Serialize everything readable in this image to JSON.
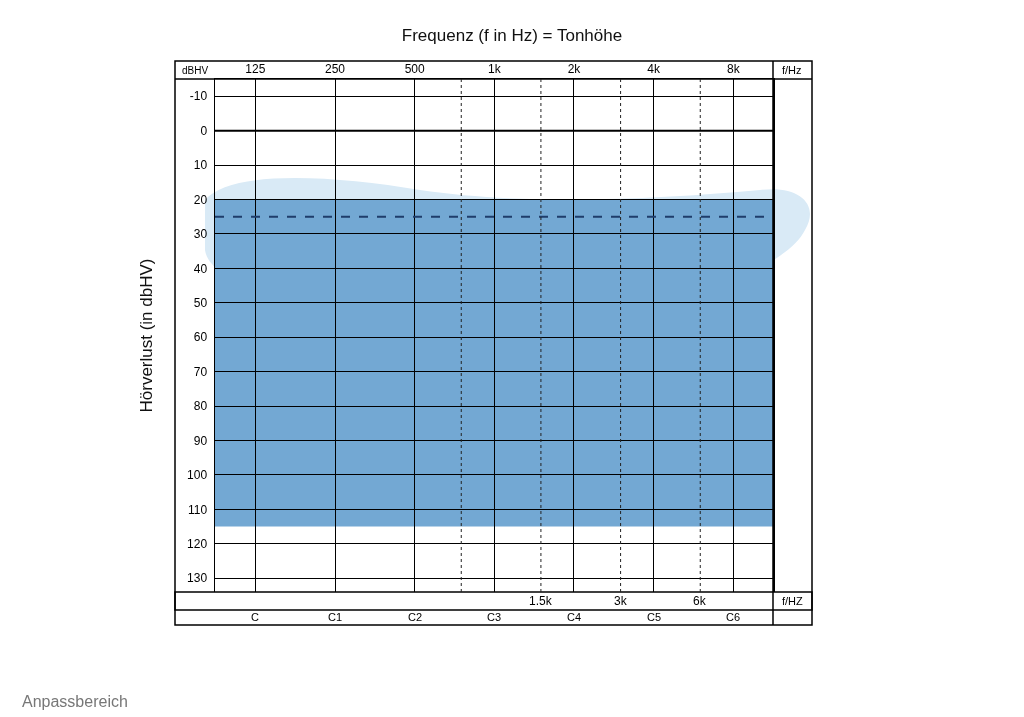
{
  "chart_data": {
    "type": "line",
    "title": "Frequenz (f in Hz) = Tonhöhe",
    "ylabel": "Hörverlust (in dbHV)",
    "log": "x",
    "xlim": [
      88,
      11300
    ],
    "xticks": [
      125,
      250,
      500,
      {
        "value": 1000,
        "label": "1k"
      },
      {
        "value": 2000,
        "label": "2k"
      },
      {
        "value": 4000,
        "label": "4k"
      },
      {
        "value": 8000,
        "label": "8k"
      }
    ],
    "ylim": [
      134,
      -15
    ],
    "yticks": [
      -10,
      0,
      10,
      20,
      30,
      40,
      50,
      60,
      70,
      80,
      90,
      100,
      110,
      120,
      130
    ],
    "grid": true,
    "bands": [
      {
        "axis": "y",
        "from": 20,
        "to": 115,
        "color": "#73a8d3"
      }
    ],
    "ref_lines": [
      {
        "axis": "y",
        "value": 25,
        "color": "#1f3d6b",
        "line_style": "dashed"
      },
      {
        "axis": "x",
        "value": 750,
        "label": null,
        "color": "#222222",
        "line_style": "dotted"
      },
      {
        "axis": "x",
        "value": 1500,
        "label": "1.5k",
        "color": "#222222",
        "line_style": "dotted"
      },
      {
        "axis": "x",
        "value": 3000,
        "label": "3k",
        "color": "#222222",
        "line_style": "dotted"
      },
      {
        "axis": "x",
        "value": 6000,
        "label": "6k",
        "color": "#222222",
        "line_style": "dotted"
      }
    ],
    "annotations": [
      "dBHV",
      "f/Hz",
      "f/HZ",
      "Anpassbereich",
      "C",
      "C1",
      "C2",
      "C3",
      "C4",
      "C5",
      "C6"
    ]
  }
}
